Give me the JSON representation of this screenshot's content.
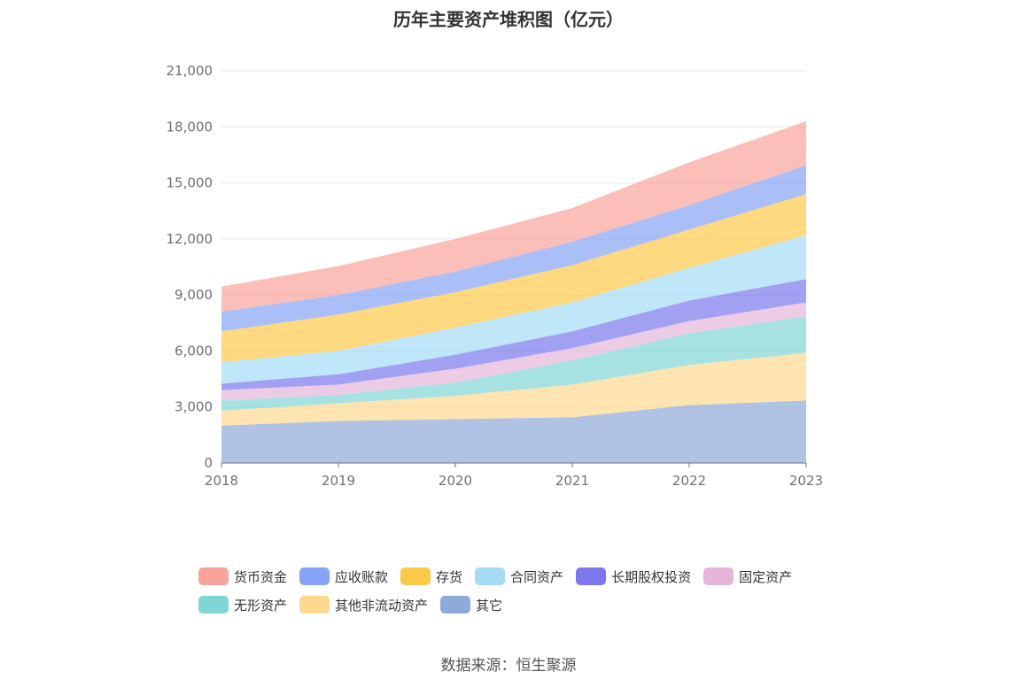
{
  "title": "历年主要资产堆积图（亿元）",
  "source": "数据来源：恒生聚源",
  "chart_data": {
    "type": "area",
    "stacked": true,
    "categories": [
      "2018",
      "2019",
      "2020",
      "2021",
      "2022",
      "2023"
    ],
    "ylim": [
      0,
      21000
    ],
    "yticks": [
      0,
      3000,
      6000,
      9000,
      12000,
      15000,
      18000,
      21000
    ],
    "ytick_labels": [
      "0",
      "3,000",
      "6,000",
      "9,000",
      "12,000",
      "15,000",
      "18,000",
      "21,000"
    ],
    "grid": true,
    "legend_position": "bottom",
    "series": [
      {
        "name": "其它",
        "color": "#8eaad8",
        "values": [
          2000,
          2250,
          2350,
          2450,
          3100,
          3350
        ]
      },
      {
        "name": "其他非流动资产",
        "color": "#fdd88f",
        "values": [
          800,
          950,
          1250,
          1750,
          2150,
          2550
        ]
      },
      {
        "name": "无形资产",
        "color": "#80d6d4",
        "values": [
          550,
          450,
          700,
          1300,
          1700,
          1950
        ]
      },
      {
        "name": "固定资产",
        "color": "#e6b5d9",
        "values": [
          550,
          550,
          750,
          650,
          650,
          750
        ]
      },
      {
        "name": "长期股权投资",
        "color": "#7b78ee",
        "values": [
          350,
          550,
          750,
          900,
          1100,
          1250
        ]
      },
      {
        "name": "合同资产",
        "color": "#a4dcf6",
        "values": [
          1150,
          1250,
          1450,
          1550,
          1750,
          2350
        ]
      },
      {
        "name": "存货",
        "color": "#fdc94a",
        "values": [
          1650,
          1950,
          1900,
          2000,
          2050,
          2200
        ]
      },
      {
        "name": "应收账款",
        "color": "#86a3f5",
        "values": [
          1050,
          1050,
          1100,
          1250,
          1300,
          1550
        ]
      },
      {
        "name": "货币资金",
        "color": "#f9a39b",
        "values": [
          1350,
          1550,
          1750,
          1800,
          2300,
          2350
        ]
      }
    ],
    "legend_order": [
      "货币资金",
      "应收账款",
      "存货",
      "合同资产",
      "长期股权投资",
      "固定资产",
      "无形资产",
      "其他非流动资产",
      "其它"
    ]
  }
}
